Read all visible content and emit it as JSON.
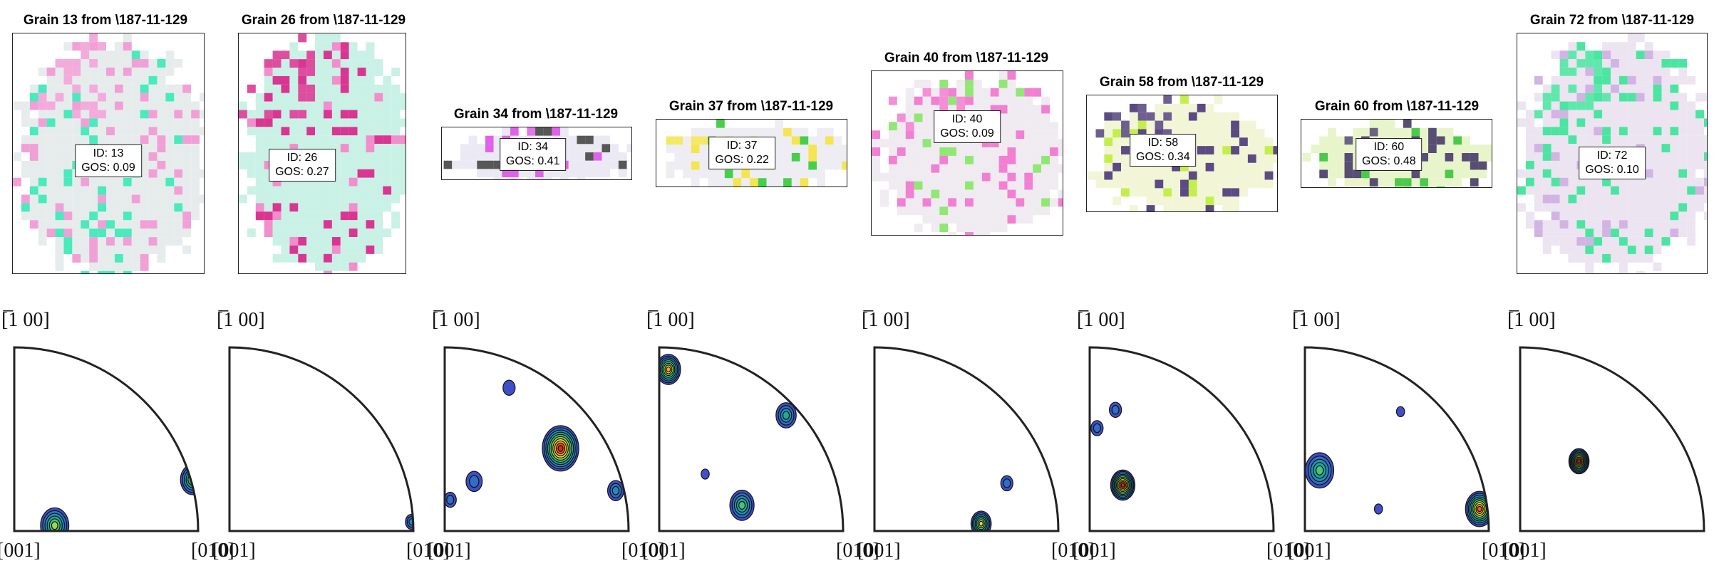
{
  "colors": {
    "contour_scale": [
      "#3f4fc9",
      "#2f6fc4",
      "#1f8fb7",
      "#20a89a",
      "#4cc27a",
      "#9fd64f",
      "#e7dc32",
      "#f6a52a",
      "#ef5a1e",
      "#d8241a"
    ]
  },
  "grains": [
    {
      "title": "Grain 13 from \\187-11-129",
      "id_text": "ID: 13",
      "gos_text": "GOS: 0.09",
      "base": "#dde6e6",
      "accent": "#ef8fd0",
      "accent2": "#29e6b0"
    },
    {
      "title": "Grain 26 from \\187-11-129",
      "id_text": "ID: 26",
      "gos_text": "GOS: 0.27",
      "base": "#b7ecdc",
      "accent": "#d2137f",
      "accent2": "#f07ac2"
    },
    {
      "title": "Grain 34 from \\187-11-129",
      "id_text": "ID: 34",
      "gos_text": "GOS: 0.41",
      "base": "#e4e2ef",
      "accent": "#d948e6",
      "accent2": "#3a3a3a"
    },
    {
      "title": "Grain 37 from \\187-11-129",
      "id_text": "ID: 37",
      "gos_text": "GOS: 0.22",
      "base": "#e8e7f0",
      "accent": "#f2e032",
      "accent2": "#27c72a"
    },
    {
      "title": "Grain 40 from \\187-11-129",
      "id_text": "ID: 40",
      "gos_text": "GOS: 0.09",
      "base": "#e9e4ec",
      "accent": "#f06aca",
      "accent2": "#7ee35a"
    },
    {
      "title": "Grain 58 from \\187-11-129",
      "id_text": "ID: 58",
      "gos_text": "GOS: 0.34",
      "base": "#eef3c8",
      "accent": "#3f2a6c",
      "accent2": "#b8ec2e"
    },
    {
      "title": "Grain 60 from \\187-11-129",
      "id_text": "ID: 60",
      "gos_text": "GOS: 0.48",
      "base": "#e0f0b8",
      "accent": "#3b2e5a",
      "accent2": "#2ac02a"
    },
    {
      "title": "Grain 72 from \\187-11-129",
      "id_text": "ID: 72",
      "gos_text": "GOS: 0.10",
      "base": "#e6dbeb",
      "accent": "#2be090",
      "accent2": "#c9a7df"
    }
  ],
  "pole_figures": {
    "label_top": "[̅1 00]",
    "label_bottom_left": "[001]",
    "label_bottom_right": "[010]",
    "blobs": [
      [
        {
          "u": 0.22,
          "v": 0.03,
          "s": 0.07,
          "levels": 6
        },
        {
          "u": 0.97,
          "v": 0.28,
          "s": 0.06,
          "levels": 6
        }
      ],
      [
        {
          "u": 0.99,
          "v": 0.05,
          "s": 0.03,
          "levels": 3
        }
      ],
      [
        {
          "u": 0.63,
          "v": 0.45,
          "s": 0.09,
          "levels": 10
        },
        {
          "u": 0.16,
          "v": 0.27,
          "s": 0.04,
          "levels": 2
        },
        {
          "u": 0.35,
          "v": 0.78,
          "s": 0.03,
          "levels": 1
        },
        {
          "u": 0.93,
          "v": 0.22,
          "s": 0.04,
          "levels": 3
        },
        {
          "u": 0.03,
          "v": 0.17,
          "s": 0.03,
          "levels": 2
        }
      ],
      [
        {
          "u": 0.05,
          "v": 0.88,
          "s": 0.06,
          "levels": 8
        },
        {
          "u": 0.69,
          "v": 0.63,
          "s": 0.05,
          "levels": 4
        },
        {
          "u": 0.45,
          "v": 0.14,
          "s": 0.06,
          "levels": 5
        },
        {
          "u": 0.25,
          "v": 0.31,
          "s": 0.02,
          "levels": 1
        }
      ],
      [
        {
          "u": 0.58,
          "v": 0.04,
          "s": 0.05,
          "levels": 7
        },
        {
          "u": 0.72,
          "v": 0.26,
          "s": 0.03,
          "levels": 2
        }
      ],
      [
        {
          "u": 0.18,
          "v": 0.25,
          "s": 0.06,
          "levels": 10
        },
        {
          "u": 0.04,
          "v": 0.56,
          "s": 0.03,
          "levels": 2
        },
        {
          "u": 0.14,
          "v": 0.66,
          "s": 0.03,
          "levels": 2
        }
      ],
      [
        {
          "u": 0.95,
          "v": 0.12,
          "s": 0.07,
          "levels": 9
        },
        {
          "u": 0.08,
          "v": 0.33,
          "s": 0.07,
          "levels": 5
        },
        {
          "u": 0.52,
          "v": 0.65,
          "s": 0.02,
          "levels": 1
        },
        {
          "u": 0.4,
          "v": 0.12,
          "s": 0.02,
          "levels": 1
        }
      ],
      [
        {
          "u": 0.32,
          "v": 0.38,
          "s": 0.05,
          "levels": 10
        }
      ]
    ]
  }
}
